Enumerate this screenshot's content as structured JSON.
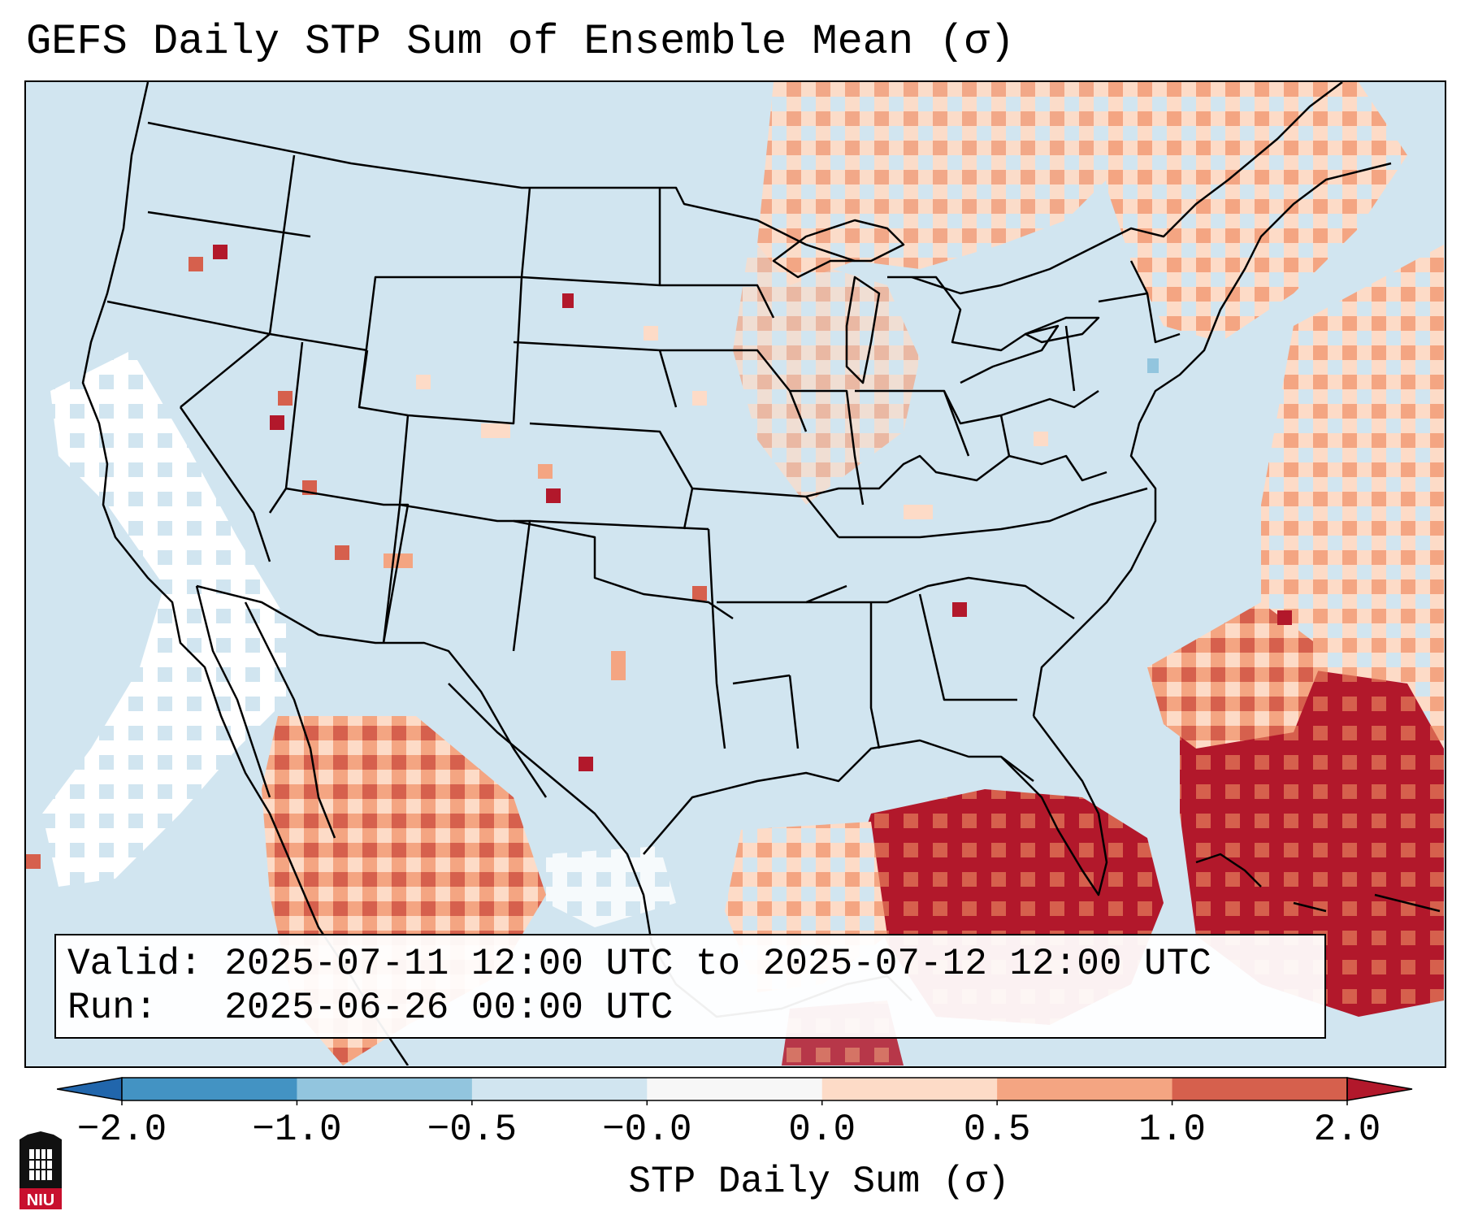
{
  "title": "GEFS Daily STP Sum of Ensemble Mean (σ)",
  "info": {
    "valid_label": "Valid:",
    "valid_value": "2025-07-11 12:00 UTC to 2025-07-12 12:00 UTC",
    "run_label": "Run:",
    "run_value": "2025-06-26 00:00 UTC"
  },
  "colorbar": {
    "label": "STP Daily Sum (σ)",
    "ticks": [
      "−2.0",
      "−1.0",
      "−0.5",
      "−0.0",
      "0.0",
      "0.5",
      "1.0",
      "2.0"
    ],
    "bin_colors": [
      "#4393c3",
      "#92c5de",
      "#d1e5f0",
      "#f7f7f7",
      "#fddbc7",
      "#f4a582",
      "#d6604d"
    ],
    "under_color": "#2166ac",
    "over_color": "#b2182b"
  },
  "logo": {
    "text": "NIU"
  },
  "map": {
    "ocean_low_color": "#ffffff",
    "background_color": "#d1e5f0",
    "regions": [
      {
        "name": "canada-ontario",
        "level": "light"
      },
      {
        "name": "canada-quebec",
        "level": "light"
      },
      {
        "name": "north-atlantic",
        "level": "light"
      },
      {
        "name": "gulf-of-mexico",
        "level": "high"
      },
      {
        "name": "western-atlantic",
        "level": "high"
      },
      {
        "name": "mexico-sierra-madre",
        "level": "medium"
      },
      {
        "name": "pacific-coastal",
        "level": "low"
      }
    ]
  }
}
